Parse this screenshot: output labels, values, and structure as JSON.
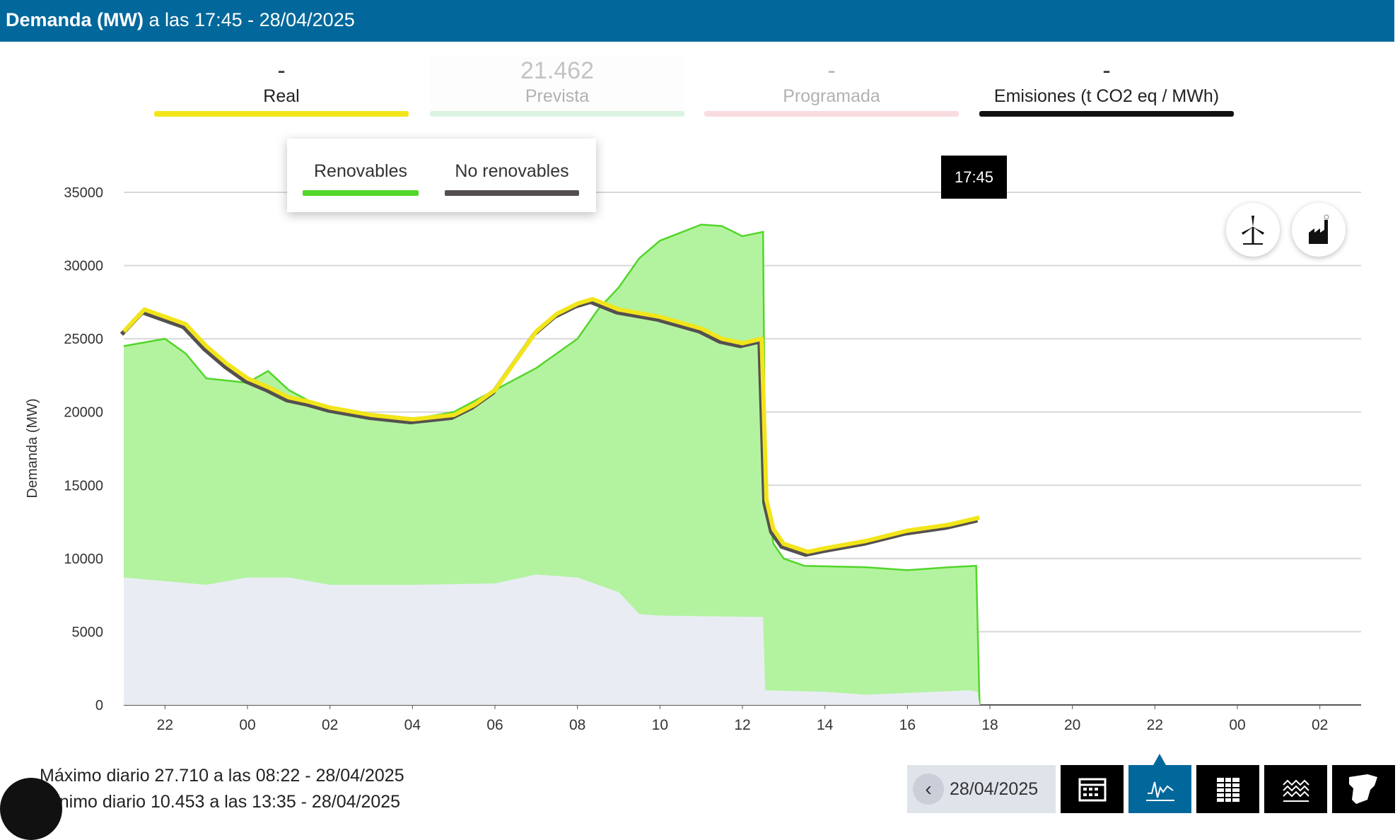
{
  "header": {
    "title_bold": "Demanda (MW)",
    "title_rest": " a las 17:45 - 28/04/2025"
  },
  "tabs": [
    {
      "value": "-",
      "label": "Real",
      "color": "#f2e51a",
      "active": true
    },
    {
      "value": "21.462",
      "label": "Prevista",
      "color": "#d6f3dc",
      "active": false
    },
    {
      "value": "-",
      "label": "Programada",
      "color": "#f6cfd2",
      "active": false
    },
    {
      "value": "-",
      "label": "Emisiones (t CO2 eq / MWh)",
      "color": "#111111",
      "active": true
    }
  ],
  "legend": [
    {
      "label": "Renovables",
      "color": "#52d62a"
    },
    {
      "label": "No renovables",
      "color": "#555050"
    }
  ],
  "tooltip": "17:45",
  "icons": [
    "wind-turbine-icon",
    "factory-icon"
  ],
  "stats": {
    "max": "Máximo diario 27.710 a las 08:22 - 28/04/2025",
    "min": "Mínimo diario 10.453 a las 13:35 - 28/04/2025"
  },
  "toolbar": {
    "date": "28/04/2025",
    "buttons": [
      "calendar-icon",
      "line-chart-icon",
      "table-icon",
      "stacked-area-icon",
      "spain-map-icon"
    ],
    "active": "line-chart-icon"
  },
  "chart_data": {
    "type": "area",
    "ylabel": "Demanda (MW)",
    "ylim": [
      0,
      35000
    ],
    "yticks": [
      "0",
      "5000",
      "10000",
      "15000",
      "20000",
      "25000",
      "30000",
      "35000"
    ],
    "xlim": [
      "27/04 21:00",
      "29/04 03:00"
    ],
    "xticks": [
      {
        "t": "27/04 22:00",
        "l": "22"
      },
      {
        "t": "28/04 00:00",
        "l": "00"
      },
      {
        "t": "28/04 02:00",
        "l": "02"
      },
      {
        "t": "28/04 04:00",
        "l": "04"
      },
      {
        "t": "28/04 06:00",
        "l": "06"
      },
      {
        "t": "28/04 08:00",
        "l": "08"
      },
      {
        "t": "28/04 10:00",
        "l": "10"
      },
      {
        "t": "28/04 12:00",
        "l": "12"
      },
      {
        "t": "28/04 14:00",
        "l": "14"
      },
      {
        "t": "28/04 16:00",
        "l": "16"
      },
      {
        "t": "28/04 18:00",
        "l": "18"
      },
      {
        "t": "28/04 20:00",
        "l": "20"
      },
      {
        "t": "28/04 22:00",
        "l": "22"
      },
      {
        "t": "29/04 00:00",
        "l": "00"
      },
      {
        "t": "29/04 02:00",
        "l": "02"
      }
    ],
    "grid": true,
    "series": [
      {
        "name": "No renovables",
        "color": "#e9edf3",
        "x": [
          "27/04 21:00",
          "27/04 23:00",
          "28/04 00:00",
          "28/04 01:00",
          "28/04 02:00",
          "28/04 04:00",
          "28/04 06:00",
          "28/04 07:00",
          "28/04 08:00",
          "28/04 09:00",
          "28/04 09:30",
          "28/04 10:00",
          "28/04 12:30",
          "28/04 12:33",
          "28/04 14:00",
          "28/04 15:00",
          "28/04 17:30",
          "28/04 17:42",
          "28/04 17:45"
        ],
        "y": [
          8700,
          8200,
          8700,
          8700,
          8200,
          8200,
          8300,
          8900,
          8700,
          7700,
          6200,
          6100,
          6000,
          1000,
          900,
          700,
          1000,
          900,
          0
        ]
      },
      {
        "name": "Renovables",
        "color": "#52d62a",
        "x": [
          "27/04 21:00",
          "27/04 22:00",
          "27/04 22:30",
          "27/04 23:00",
          "28/04 00:00",
          "28/04 00:30",
          "28/04 01:00",
          "28/04 02:00",
          "28/04 03:00",
          "28/04 04:00",
          "28/04 05:00",
          "28/04 06:00",
          "28/04 07:00",
          "28/04 08:00",
          "28/04 08:30",
          "28/04 09:00",
          "28/04 09:30",
          "28/04 10:00",
          "28/04 11:00",
          "28/04 11:30",
          "28/04 12:00",
          "28/04 12:30",
          "28/04 12:33",
          "28/04 12:45",
          "28/04 13:00",
          "28/04 13:30",
          "28/04 15:00",
          "28/04 16:00",
          "28/04 17:00",
          "28/04 17:40",
          "28/04 17:45"
        ],
        "y": [
          24500,
          25000,
          24000,
          22300,
          22000,
          22800,
          21500,
          20000,
          19800,
          19500,
          20000,
          21500,
          23000,
          25000,
          27000,
          28500,
          30500,
          31700,
          32800,
          32700,
          32000,
          32300,
          15000,
          11000,
          10000,
          9500,
          9400,
          9200,
          9400,
          9500,
          0
        ]
      },
      {
        "name": "Real",
        "color": "#f2e51a",
        "x": [
          "27/04 21:00",
          "27/04 21:30",
          "27/04 22:00",
          "27/04 22:30",
          "27/04 23:00",
          "27/04 23:30",
          "28/04 00:00",
          "28/04 00:30",
          "28/04 01:00",
          "28/04 01:30",
          "28/04 02:00",
          "28/04 03:00",
          "28/04 04:00",
          "28/04 05:00",
          "28/04 05:30",
          "28/04 06:00",
          "28/04 06:30",
          "28/04 07:00",
          "28/04 07:30",
          "28/04 08:00",
          "28/04 08:22",
          "28/04 09:00",
          "28/04 10:00",
          "28/04 11:00",
          "28/04 11:30",
          "28/04 12:00",
          "28/04 12:28",
          "28/04 12:35",
          "28/04 12:45",
          "28/04 13:00",
          "28/04 13:35",
          "28/04 14:00",
          "28/04 15:00",
          "28/04 16:00",
          "28/04 17:00",
          "28/04 17:45"
        ],
        "y": [
          25500,
          27000,
          26500,
          26000,
          24500,
          23300,
          22300,
          21700,
          21000,
          20700,
          20300,
          19800,
          19500,
          19800,
          20500,
          21500,
          23500,
          25500,
          26700,
          27400,
          27710,
          27000,
          26500,
          25700,
          25000,
          24700,
          25000,
          14000,
          12000,
          11000,
          10453,
          10700,
          11200,
          11900,
          12300,
          12800
        ]
      }
    ]
  }
}
